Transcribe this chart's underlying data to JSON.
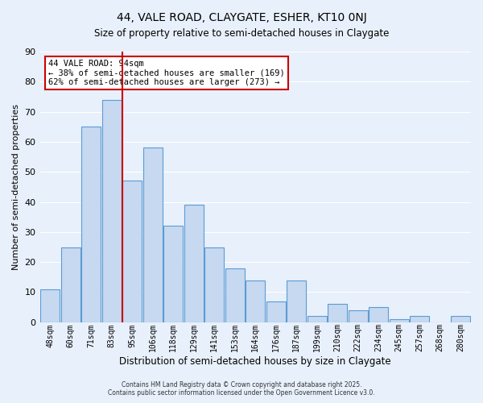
{
  "title": "44, VALE ROAD, CLAYGATE, ESHER, KT10 0NJ",
  "subtitle": "Size of property relative to semi-detached houses in Claygate",
  "xlabel": "Distribution of semi-detached houses by size in Claygate",
  "ylabel": "Number of semi-detached properties",
  "bar_labels": [
    "48sqm",
    "60sqm",
    "71sqm",
    "83sqm",
    "95sqm",
    "106sqm",
    "118sqm",
    "129sqm",
    "141sqm",
    "153sqm",
    "164sqm",
    "176sqm",
    "187sqm",
    "199sqm",
    "210sqm",
    "222sqm",
    "234sqm",
    "245sqm",
    "257sqm",
    "268sqm",
    "280sqm"
  ],
  "bar_values": [
    11,
    25,
    65,
    74,
    47,
    58,
    32,
    39,
    25,
    18,
    14,
    7,
    14,
    2,
    6,
    4,
    5,
    1,
    2,
    0,
    2
  ],
  "bar_color": "#c6d9f0",
  "bar_edge_color": "#5b9bd5",
  "background_color": "#e8f0fb",
  "grid_color": "#ffffff",
  "vline_color": "#cc0000",
  "vline_x": 3.5,
  "annotation_line1": "44 VALE ROAD: 94sqm",
  "annotation_line2": "← 38% of semi-detached houses are smaller (169)",
  "annotation_line3": "62% of semi-detached houses are larger (273) →",
  "annotation_box_color": "#ffffff",
  "annotation_box_edge": "#cc0000",
  "ylim": [
    0,
    90
  ],
  "yticks": [
    0,
    10,
    20,
    30,
    40,
    50,
    60,
    70,
    80,
    90
  ],
  "footer_line1": "Contains HM Land Registry data © Crown copyright and database right 2025.",
  "footer_line2": "Contains public sector information licensed under the Open Government Licence v3.0."
}
